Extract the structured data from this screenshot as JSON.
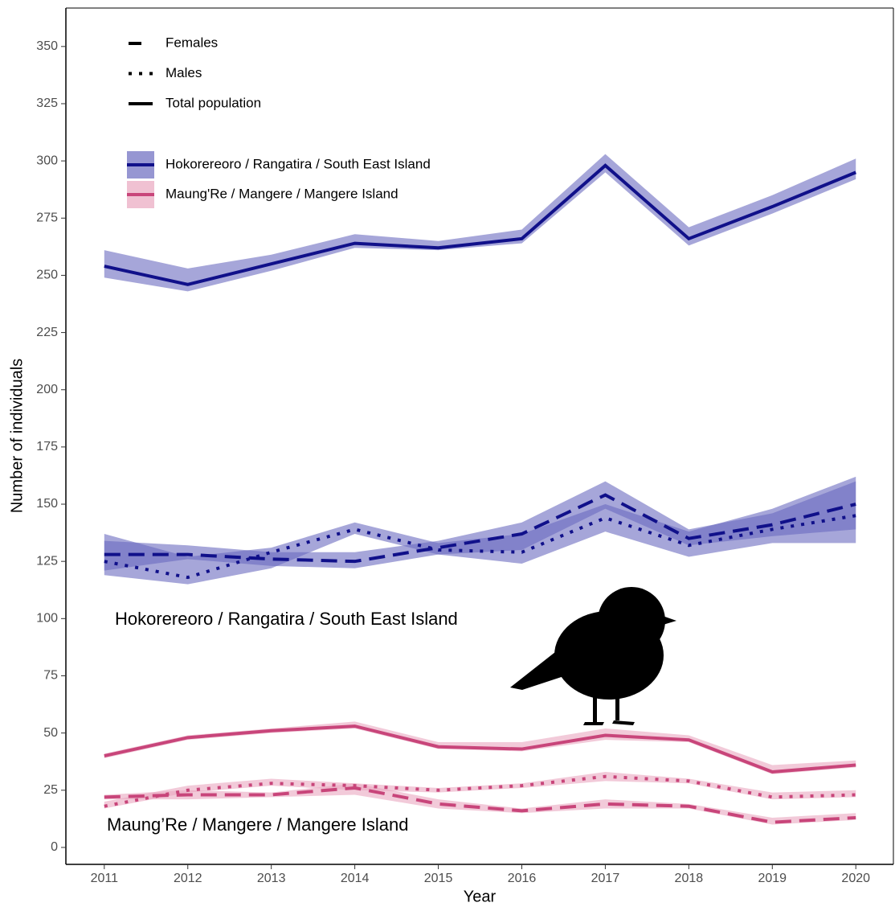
{
  "chart_data": {
    "type": "line",
    "x_label": "Year",
    "y_label": "Number of individuals",
    "x": [
      2011,
      2012,
      2013,
      2014,
      2015,
      2016,
      2017,
      2018,
      2019,
      2020
    ],
    "xlim": [
      2010.54,
      2020.45
    ],
    "xticks": [
      2011,
      2012,
      2013,
      2014,
      2015,
      2016,
      2017,
      2018,
      2019,
      2020
    ],
    "ylim": [
      -7.4,
      366.8
    ],
    "yticks": [
      0,
      25,
      50,
      75,
      100,
      125,
      150,
      175,
      200,
      225,
      250,
      275,
      300,
      325,
      350
    ],
    "linetypes": [
      {
        "name": "Females",
        "dash": "dashed"
      },
      {
        "name": "Males",
        "dash": "dotted"
      },
      {
        "name": "Total population",
        "dash": "solid"
      }
    ],
    "series": [
      {
        "name": "Hokorereoro / Rangatira / South East Island",
        "color": "#10108a",
        "band_color": "#6a6abf",
        "lines": [
          {
            "values": [
              128,
              128,
              126,
              125,
              131,
              137,
              154,
              135,
              141,
              150
            ],
            "lower": [
              121,
              126,
              123,
              122,
              128,
              130,
              148,
              132,
              136,
              139
            ],
            "upper": [
              134,
              132,
              129,
              129,
              134,
              142,
              160,
              139,
              146,
              160
            ]
          },
          {
            "values": [
              125,
              118,
              129,
              139,
              130,
              129,
              144,
              132,
              139,
              145
            ],
            "lower": [
              119,
              115,
              122,
              137,
              128,
              124,
              138,
              127,
              133,
              133
            ],
            "upper": [
              137,
              127,
              131,
              142,
              133,
              137,
              150,
              138,
              148,
              162
            ]
          },
          {
            "values": [
              254,
              246,
              255,
              264,
              262,
              266,
              298,
              266,
              280,
              295
            ],
            "lower": [
              249,
              243,
              252,
              262,
              261,
              264,
              295,
              263,
              277,
              292
            ],
            "upper": [
              261,
              253,
              259,
              268,
              265,
              270,
              303,
              271,
              285,
              301
            ]
          }
        ]
      },
      {
        "name": "Maung'Re / Mangere / Mangere Island",
        "color": "#c8457a",
        "band_color": "#eaa6bf",
        "lines": [
          {
            "values": [
              22,
              23,
              23,
              26,
              19,
              16,
              19,
              18,
              11,
              13
            ],
            "lower": [
              21,
              21,
              22,
              23,
              17,
              15,
              17,
              17,
              10,
              12
            ],
            "upper": [
              23,
              25,
              24,
              28,
              21,
              17,
              21,
              19,
              13,
              15
            ]
          },
          {
            "values": [
              18,
              25,
              28,
              27,
              25,
              27,
              31,
              29,
              22,
              23
            ],
            "lower": [
              17,
              24,
              27,
              25,
              24,
              26,
              29,
              28,
              21,
              22
            ],
            "upper": [
              20,
              27,
              30,
              28,
              26,
              28,
              33,
              30,
              24,
              25
            ]
          },
          {
            "values": [
              40,
              48,
              51,
              53,
              44,
              43,
              49,
              47,
              33,
              36
            ],
            "lower": [
              39,
              47,
              50,
              52,
              43,
              42,
              47,
              46,
              32,
              35
            ],
            "upper": [
              41,
              49,
              52,
              55,
              46,
              46,
              52,
              49,
              36,
              38
            ]
          }
        ]
      }
    ],
    "annotations": [
      "Hokorereoro / Rangatira / South East Island",
      "Maung’Re / Mangere / Mangere Island"
    ]
  }
}
